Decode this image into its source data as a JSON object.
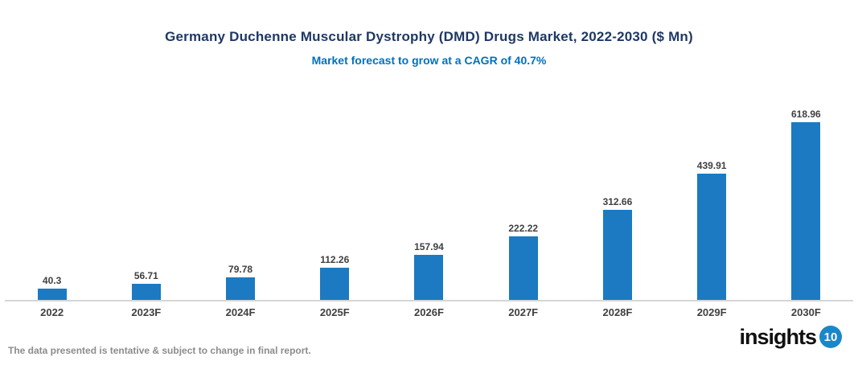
{
  "header": {
    "title": "Germany Duchenne Muscular Dystrophy (DMD) Drugs Market, 2022-2030 ($ Mn)",
    "subtitle": "Market forecast to grow at a CAGR of 40.7%"
  },
  "chart_data": {
    "type": "bar",
    "title": "Germany Duchenne Muscular Dystrophy (DMD) Drugs Market, 2022-2030 ($ Mn)",
    "subtitle": "Market forecast to grow at a CAGR of 40.7%",
    "categories": [
      "2022",
      "2023F",
      "2024F",
      "2025F",
      "2026F",
      "2027F",
      "2028F",
      "2029F",
      "2030F"
    ],
    "values": [
      40.3,
      56.71,
      79.78,
      112.26,
      157.94,
      222.22,
      312.66,
      439.91,
      618.96
    ],
    "xlabel": "",
    "ylabel": "",
    "ylim": [
      0,
      650
    ],
    "grid": false,
    "legend": false,
    "value_labels_shown": true,
    "bar_color": "#1b7ac1"
  },
  "footer": {
    "disclaimer": "The data presented is tentative & subject to change in final report.",
    "logo_text": "insights",
    "logo_badge": "10"
  },
  "colors": {
    "title": "#1f3864",
    "subtitle": "#0070c0",
    "bar": "#1b7ac1",
    "value_label": "#404040",
    "category_label": "#404040",
    "axis_line": "#d6d6d6",
    "disclaimer": "#8c8c8c",
    "logo_badge_bg": "#1a87c9"
  }
}
